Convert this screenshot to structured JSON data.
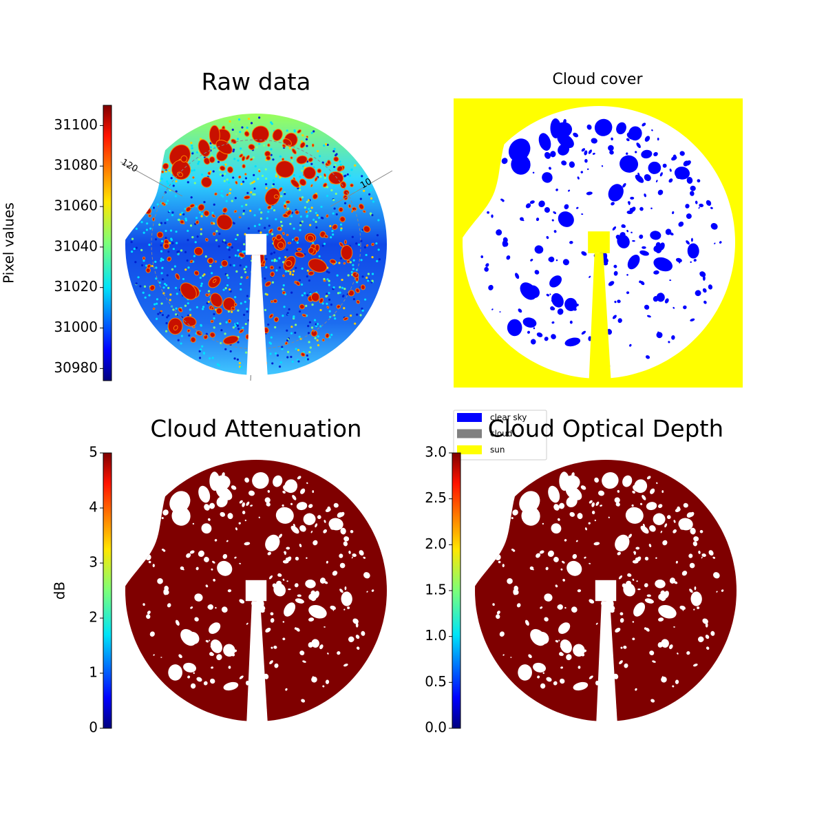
{
  "chart_data": [
    {
      "type": "image",
      "title": "Raw data",
      "colormap": "jet",
      "ylabel": "Pixel values",
      "ylim": [
        30974,
        31110
      ],
      "yticks": [
        30980,
        31000,
        31020,
        31040,
        31060,
        31080,
        31100
      ],
      "annotations": [
        "120",
        "10"
      ]
    },
    {
      "type": "mask",
      "title": "Cloud cover",
      "legend": "lower left",
      "series": [
        {
          "name": "clear sky",
          "color": "#0000ff"
        },
        {
          "name": "cloud",
          "color": "#808080"
        },
        {
          "name": "sun",
          "color": "#ffff00"
        }
      ]
    },
    {
      "type": "image",
      "title": "Cloud Attenuation",
      "colormap": "jet",
      "ylabel": "dB",
      "ylim": [
        0,
        5
      ],
      "yticks": [
        0,
        1,
        2,
        3,
        4,
        5
      ]
    },
    {
      "type": "image",
      "title": "Cloud Optical Depth",
      "colormap": "jet",
      "ylim": [
        0,
        3
      ],
      "yticks": [
        {
          "value": 0,
          "label": "0.0"
        },
        0.5,
        {
          "value": 1,
          "label": "1.0"
        },
        1.5,
        {
          "value": 2,
          "label": "2.0"
        },
        2.5,
        {
          "value": 3,
          "label": "3.0"
        }
      ]
    }
  ]
}
